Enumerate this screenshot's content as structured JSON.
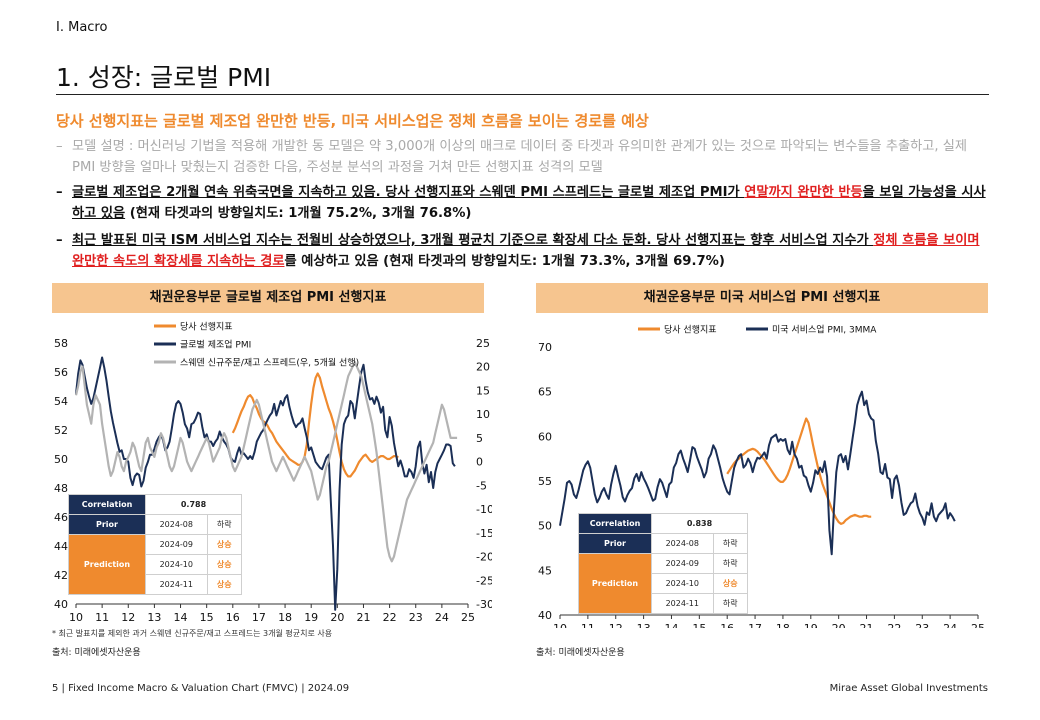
{
  "section": "I. Macro",
  "title": "1. 성장: 글로벌 PMI",
  "headline": "당사 선행지표는 글로벌 제조업 완만한 반등, 미국 서비스업은 정체 흐름을 보이는 경로를 예상",
  "bullets": {
    "b1": {
      "dash": "–",
      "text": "모델 설명 : 머신러닝 기법을 적용해 개발한 동 모델은 약 3,000개 이상의 매크로 데이터 중 타겟과 유의미한 관계가 있는 것으로 파악되는 변수들을 추출하고, 실제 PMI 방향을 얼마나 맞췄는지 검증한 다음, 주성분 분석의 과정을 거쳐 만든 선행지표 성격의 모델"
    },
    "b2": {
      "dash": "–",
      "p1": "글로벌 제조업은 2개월 연속 위축국면을 지속하고 있음. 당사 선행지표와 스웨덴 PMI 스프레드는 글로벌 제조업 PMI가 ",
      "red": "연말까지 완만한 반등",
      "p2": "을 보일 가능성을 시사하고 있음",
      "p3": " (현재 타겟과의 방향일치도: 1개월 75.2%, 3개월 76.8%)"
    },
    "b3": {
      "dash": "–",
      "p1": "최근 발표된 미국 ISM 서비스업 지수는 전월비 상승하였으나, 3개월 평균치 기준으로 확장세 다소 둔화. 당사 선행지표는 향후 서비스업 지수가 ",
      "red": "정체 흐름을 보이며 완만한 속도의 확장세를 지속하는 경로",
      "p2": "를 예상하고 있음",
      "p3": " (현재 타겟과의 방향일치도: 1개월 73.3%, 3개월 69.7%)"
    }
  },
  "colors": {
    "orange": "#ef8a2e",
    "navy": "#1b2f56",
    "gray": "#b3b3b3",
    "header_bg": "#f6c58f",
    "red": "#e02020"
  },
  "footnote": "* 최근 발표치를 제외한 과거 스웨덴 신규주문/재고 스프레드는 3개월 평균치로 사용",
  "source1": "출처: 미래에셋자산운용",
  "source2": "출처: 미래에셋자산운용",
  "footer_left": "5 | Fixed Income Macro & Valuation Chart (FMVC) | 2024.09",
  "footer_right": "Mirae Asset Global Investments",
  "table1": {
    "corr_label": "Correlation",
    "corr_value": "0.788",
    "prior_label": "Prior",
    "prior_date": "2024-08",
    "prior_dir": "하락",
    "pred_label": "Prediction",
    "rows": [
      {
        "date": "2024-09",
        "dir": "상승"
      },
      {
        "date": "2024-10",
        "dir": "상승"
      },
      {
        "date": "2024-11",
        "dir": "상승"
      }
    ]
  },
  "table2": {
    "corr_label": "Correlation",
    "corr_value": "0.838",
    "prior_label": "Prior",
    "prior_date": "2024-08",
    "prior_dir": "하락",
    "pred_label": "Prediction",
    "rows": [
      {
        "date": "2024-09",
        "dir": "하락"
      },
      {
        "date": "2024-10",
        "dir": "상승"
      },
      {
        "date": "2024-11",
        "dir": "하락"
      }
    ]
  },
  "chart_data": [
    {
      "type": "line",
      "title": "채권운용부문 글로벌 제조업 PMI 선행지표",
      "x_ticks": [
        "10",
        "11",
        "12",
        "13",
        "14",
        "15",
        "16",
        "17",
        "18",
        "19",
        "20",
        "21",
        "22",
        "23",
        "24",
        "25"
      ],
      "ylim_left": [
        40,
        58
      ],
      "y_ticks_left": [
        40,
        42,
        44,
        46,
        48,
        50,
        52,
        54,
        56,
        58
      ],
      "ylim_right": [
        -30,
        25
      ],
      "y_ticks_right": [
        -30,
        -25,
        -20,
        -15,
        -10,
        -5,
        0,
        5,
        10,
        15,
        20,
        25
      ],
      "legend": "top-center",
      "series": [
        {
          "name": "당사 선행지표",
          "color": "#ef8a2e",
          "axis": "left",
          "x_start": 2016.0,
          "values": [
            51.8,
            52.1,
            52.5,
            52.9,
            53.3,
            53.6,
            54.0,
            54.3,
            54.4,
            54.2,
            53.8,
            53.5,
            53.1,
            52.8,
            52.6,
            52.5,
            52.3,
            52.0,
            51.8,
            51.5,
            51.2,
            51.0,
            50.8,
            50.6,
            50.4,
            50.2,
            50.0,
            49.9,
            49.8,
            49.7,
            49.6,
            49.6,
            49.8,
            50.2,
            51.0,
            52.5,
            53.8,
            54.9,
            55.6,
            55.9,
            55.6,
            55.0,
            54.5,
            54.0,
            53.5,
            53.1,
            52.6,
            52.0,
            51.3,
            50.5,
            49.8,
            49.3,
            49.0,
            48.8,
            48.8,
            49.0,
            49.2,
            49.5,
            49.8,
            50.0,
            50.2,
            50.3,
            50.1,
            49.9,
            49.8,
            49.9,
            50.0,
            50.1,
            50.2,
            50.2,
            50.1,
            50.0,
            50.0,
            50.1,
            50.2,
            50.2,
            50.1
          ]
        },
        {
          "name": "글로벌 제조업 PMI",
          "color": "#1b2f56",
          "axis": "left",
          "x_start": 2010.0,
          "values": [
            54.5,
            55.9,
            56.8,
            56.5,
            55.7,
            54.9,
            54.3,
            53.8,
            54.2,
            54.9,
            55.6,
            56.3,
            57.0,
            56.3,
            55.4,
            54.3,
            53.3,
            52.5,
            51.8,
            51.1,
            50.5,
            50.6,
            50.0,
            50.0,
            49.8,
            48.7,
            48.2,
            48.8,
            49.0,
            48.9,
            48.1,
            48.5,
            49.4,
            49.8,
            50.3,
            50.3,
            50.7,
            51.2,
            51.5,
            51.7,
            51.3,
            50.6,
            50.8,
            51.2,
            52.1,
            53.1,
            53.8,
            54.0,
            53.8,
            53.2,
            52.4,
            52.1,
            51.5,
            52.4,
            52.5,
            52.8,
            53.2,
            53.1,
            52.2,
            51.5,
            51.7,
            51.2,
            51.2,
            50.9,
            51.2,
            51.4,
            51.9,
            51.5,
            51.2,
            51.0,
            50.7,
            50.1,
            49.9,
            49.8,
            50.4,
            50.8,
            50.3,
            50.4,
            50.2,
            50.0,
            50.2,
            50.0,
            50.5,
            51.2,
            51.5,
            51.8,
            52.0,
            52.4,
            52.7,
            53.0,
            53.2,
            53.8,
            53.0,
            53.5,
            54.0,
            53.7,
            54.2,
            54.4,
            53.6,
            53.0,
            52.5,
            52.2,
            52.4,
            52.5,
            52.8,
            52.1,
            51.5,
            50.6,
            50.8,
            50.3,
            49.8,
            49.6,
            49.4,
            49.3,
            49.7,
            50.1,
            50.3,
            47.1,
            44.0,
            39.6,
            42.4,
            47.8,
            51.0,
            52.4,
            52.8,
            53.0,
            54.0,
            53.8,
            52.8,
            53.9,
            55.0,
            56.0,
            56.5,
            55.4,
            54.6,
            54.1,
            54.2,
            53.8,
            54.3,
            53.9,
            53.2,
            53.6,
            52.0,
            51.5,
            52.9,
            52.3,
            51.1,
            50.3,
            49.5,
            49.9,
            49.4,
            48.8,
            48.8,
            49.3,
            49.1,
            48.7,
            49.5,
            50.8,
            51.2,
            49.7,
            49.0,
            49.6,
            48.4,
            49.1,
            48.0,
            49.1,
            49.7,
            50.0,
            50.3,
            50.6,
            51.0,
            51.0,
            50.9,
            49.7,
            49.5
          ]
        },
        {
          "name": "스웨덴 신규주문/재고 스프레드(우, 5개월 선행)",
          "color": "#b3b3b3",
          "axis": "right",
          "x_start": 2010.0,
          "values": [
            14,
            16,
            19,
            20,
            16,
            12,
            10,
            8,
            12,
            14,
            13,
            12,
            8,
            5,
            2,
            -1,
            -3,
            -2,
            0,
            2,
            1,
            -1,
            -2,
            0,
            1,
            2,
            4,
            3,
            1,
            -1,
            -2,
            1,
            4,
            5,
            3,
            2,
            1,
            3,
            4,
            6,
            5,
            3,
            1,
            -1,
            -2,
            -1,
            1,
            3,
            5,
            4,
            2,
            0,
            -1,
            -2,
            -1,
            0,
            1,
            2,
            3,
            4,
            5,
            4,
            2,
            0,
            1,
            2,
            3,
            5,
            6,
            5,
            3,
            1,
            -1,
            -2,
            -1,
            0,
            1,
            3,
            5,
            7,
            9,
            11,
            12,
            13,
            12,
            10,
            8,
            6,
            4,
            2,
            0,
            -1,
            -2,
            -1,
            0,
            1,
            0,
            -1,
            -2,
            -3,
            -4,
            -3,
            -2,
            -1,
            0,
            1,
            0,
            -1,
            -2,
            -4,
            -6,
            -8,
            -7,
            -5,
            -3,
            -1,
            0,
            2,
            4,
            6,
            8,
            10,
            12,
            14,
            16,
            18,
            19,
            20,
            21,
            20,
            19,
            18,
            16,
            14,
            12,
            10,
            8,
            5,
            2,
            -2,
            -6,
            -10,
            -14,
            -18,
            -20,
            -21,
            -20,
            -18,
            -16,
            -14,
            -12,
            -10,
            -8,
            -7,
            -6,
            -5,
            -4,
            -3,
            -2,
            -1,
            0,
            1,
            2,
            3,
            4,
            6,
            8,
            10,
            12,
            11,
            9,
            7,
            5,
            5,
            5,
            5
          ]
        }
      ]
    },
    {
      "type": "line",
      "title": "채권운용부문 미국 서비스업 PMI 선행지표",
      "x_ticks": [
        "10",
        "11",
        "12",
        "13",
        "14",
        "15",
        "16",
        "17",
        "18",
        "19",
        "20",
        "21",
        "22",
        "23",
        "24",
        "25"
      ],
      "ylim": [
        40,
        70
      ],
      "y_ticks": [
        40,
        45,
        50,
        55,
        60,
        65,
        70
      ],
      "legend": "top-center",
      "series": [
        {
          "name": "당사 선행지표",
          "color": "#ef8a2e",
          "axis": "left",
          "x_start": 2016.0,
          "values": [
            55.8,
            56.2,
            56.6,
            57.0,
            57.3,
            57.5,
            57.8,
            58.0,
            58.2,
            58.4,
            58.5,
            58.6,
            58.5,
            58.3,
            58.0,
            57.7,
            57.4,
            57.0,
            56.6,
            56.2,
            55.8,
            55.4,
            55.1,
            54.9,
            54.9,
            55.2,
            55.7,
            56.4,
            57.2,
            58.0,
            58.8,
            59.6,
            60.4,
            61.2,
            62.0,
            61.5,
            60.3,
            59.0,
            57.8,
            56.6,
            55.6,
            54.7,
            54.0,
            53.3,
            52.6,
            51.9,
            51.3,
            50.8,
            50.4,
            50.2,
            50.3,
            50.6,
            50.8,
            51.0,
            51.1,
            51.2,
            51.1,
            51.0,
            51.0,
            51.1,
            51.1,
            51.0,
            51.0
          ]
        },
        {
          "name": "미국 서비스업 PMI, 3MMA",
          "color": "#1b2f56",
          "axis": "left",
          "x_start": 2010.0,
          "values": [
            50.0,
            51.5,
            53.0,
            54.8,
            55.0,
            54.6,
            53.5,
            53.1,
            54.0,
            55.1,
            56.2,
            56.8,
            57.2,
            56.5,
            55.0,
            53.5,
            52.6,
            53.1,
            53.8,
            54.2,
            53.5,
            53.0,
            54.6,
            55.8,
            56.7,
            55.5,
            54.5,
            53.2,
            52.7,
            53.4,
            53.9,
            54.2,
            55.3,
            55.8,
            55.0,
            56.0,
            55.3,
            54.8,
            54.2,
            53.5,
            52.8,
            53.0,
            54.3,
            55.2,
            54.8,
            54.0,
            53.2,
            54.6,
            54.9,
            56.5,
            57.0,
            58.0,
            58.4,
            57.5,
            56.8,
            56.0,
            57.3,
            58.8,
            58.6,
            57.7,
            57.0,
            56.3,
            55.4,
            56.0,
            57.5,
            58.0,
            59.0,
            58.5,
            57.5,
            56.5,
            55.3,
            54.5,
            53.8,
            53.5,
            55.0,
            56.5,
            57.2,
            57.8,
            58.0,
            56.5,
            56.8,
            57.5,
            57.0,
            56.0,
            57.0,
            57.6,
            57.5,
            57.8,
            58.2,
            57.5,
            59.0,
            59.8,
            60.0,
            60.2,
            59.4,
            59.7,
            59.5,
            59.7,
            58.5,
            58.0,
            59.4,
            58.0,
            57.5,
            56.5,
            56.7,
            55.6,
            55.4,
            54.5,
            53.8,
            54.8,
            56.2,
            55.8,
            56.5,
            56.0,
            57.2,
            55.5,
            49.5,
            46.8,
            52.0,
            56.0,
            57.8,
            58.0,
            57.1,
            57.8,
            56.3,
            58.0,
            59.8,
            61.5,
            63.5,
            64.4,
            65.0,
            63.5,
            64.0,
            62.5,
            62.0,
            61.8,
            59.5,
            58.1,
            56.0,
            55.8,
            56.9,
            55.4,
            55.2,
            53.1,
            55.2,
            55.6,
            54.5,
            52.6,
            51.2,
            51.4,
            52.0,
            52.5,
            52.7,
            53.6,
            52.2,
            51.4,
            50.9,
            50.1,
            51.5,
            51.2,
            52.5,
            51.0,
            50.5,
            51.2,
            51.5,
            51.8,
            52.5,
            50.8,
            51.4,
            51.0,
            50.5
          ]
        }
      ]
    }
  ]
}
